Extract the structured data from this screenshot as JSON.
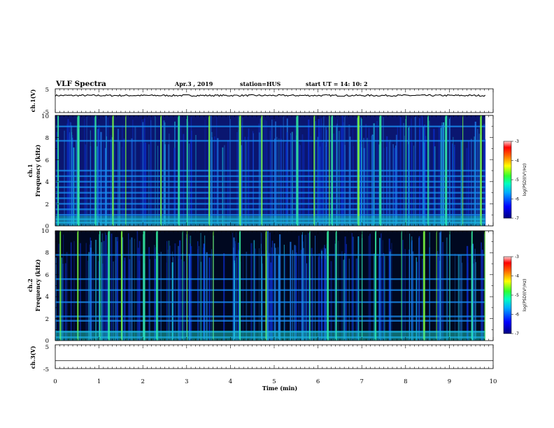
{
  "header": {
    "title": "VLF Spectra",
    "date": "Apr.3 , 2019",
    "station": "station=HUS",
    "start": "start UT =  14: 10: 2"
  },
  "chart_data": [
    {
      "type": "line",
      "panel": "ch1-voltage",
      "ylabel": "ch.1(V)",
      "ylim": [
        -5,
        5
      ],
      "yticks": [
        "5",
        "-5"
      ],
      "xlim": [
        0,
        10
      ],
      "series": [
        {
          "values_approx_constant": 2.2
        }
      ]
    },
    {
      "type": "heatmap",
      "panel": "ch1-spectrogram",
      "ylabel": "ch.1\nFrequency (kHz)",
      "ylim": [
        0,
        10
      ],
      "yticks": [
        "0",
        "2",
        "4",
        "6",
        "8",
        "10"
      ],
      "xlim": [
        0,
        9.82
      ],
      "horizontal_bands_khz": [
        0.3,
        0.6,
        1.0,
        1.5,
        2.0,
        2.5,
        3.0,
        3.5,
        4.0,
        4.5,
        5.0,
        7.7,
        9.0
      ],
      "bright_bursts_min": [
        0.05,
        0.5,
        0.9,
        1.3,
        1.6,
        2.4,
        2.8,
        3.0,
        3.5,
        4.2,
        4.7,
        5.5,
        5.9,
        6.25,
        6.3,
        6.9,
        7.4,
        8.0,
        8.5,
        8.9,
        9.3,
        9.7
      ],
      "colorbar": {
        "label": "log(PSD)(V²/Hz)",
        "range": [
          -7,
          -3
        ],
        "ticks": [
          "-3",
          "-4",
          "-5",
          "-6",
          "-7"
        ]
      }
    },
    {
      "type": "heatmap",
      "panel": "ch2-spectrogram",
      "ylabel": "ch.2\nFrequency (kHz)",
      "ylim": [
        0,
        10
      ],
      "yticks": [
        "0",
        "2",
        "4",
        "6",
        "8",
        "10"
      ],
      "xlim": [
        0,
        9.82
      ],
      "horizontal_bands_khz": [
        0.3,
        0.8,
        1.8,
        2.2,
        3.5,
        4.6,
        5.6,
        7.8
      ],
      "bright_bursts_min": [
        0.1,
        0.5,
        1.0,
        1.2,
        1.5,
        2.0,
        2.3,
        2.9,
        3.0,
        3.6,
        4.2,
        4.8,
        5.8,
        6.2,
        6.4,
        7.0,
        7.3,
        7.9,
        8.4,
        8.7,
        9.0,
        9.5,
        9.8
      ],
      "colorbar": {
        "label": "log(PSD)(V²/Hz)",
        "range": [
          -7,
          -3
        ],
        "ticks": [
          "-3",
          "-4",
          "-5",
          "-6",
          "-7"
        ]
      }
    },
    {
      "type": "line",
      "panel": "ch3-voltage",
      "ylabel": "ch.3(V)",
      "xlabel": "Time (min)",
      "ylim": [
        -5,
        5
      ],
      "yticks": [
        "5",
        "-5"
      ],
      "xlim": [
        0,
        10
      ],
      "xticks": [
        "0",
        "1",
        "2",
        "3",
        "4",
        "5",
        "6",
        "7",
        "8",
        "9",
        "10"
      ],
      "series": [
        {
          "values_approx_constant": -1.7
        }
      ]
    }
  ]
}
